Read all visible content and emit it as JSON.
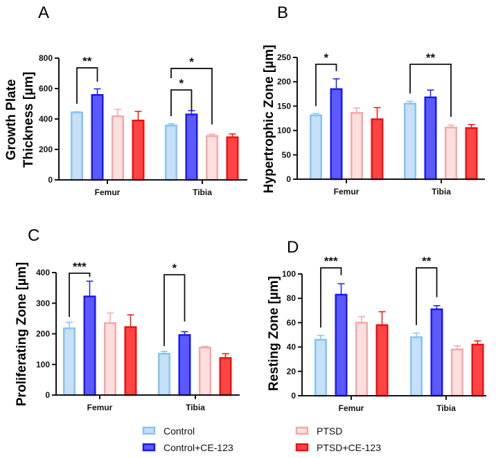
{
  "chart_data": {
    "series_names": [
      "Control",
      "Control+CE-123",
      "PTSD",
      "PTSD+CE-123"
    ],
    "series_colors": {
      "fill": [
        "#c5e0f7",
        "#5a5aff",
        "#ffdede",
        "#ff4444"
      ],
      "stroke": [
        "#86c3f5",
        "#1a1aee",
        "#f5a8a8",
        "#ee1111"
      ]
    },
    "legend_position": "bottom",
    "panels": [
      {
        "panel_label": "A",
        "type": "bar",
        "ylabel_lines": [
          "Growth Plate",
          "Thickness [µm]"
        ],
        "categories": [
          "Femur",
          "Tibia"
        ],
        "ylim": [
          0,
          800
        ],
        "yticks": [
          0,
          200,
          400,
          600,
          800
        ],
        "values": [
          [
            443,
            558,
            418,
            390
          ],
          [
            357,
            430,
            288,
            280
          ]
        ],
        "errors": [
          [
            5,
            40,
            45,
            60
          ],
          [
            12,
            25,
            12,
            22
          ]
        ],
        "significance": [
          {
            "category": 0,
            "pair": [
              0,
              1
            ],
            "label": "**"
          },
          {
            "category": 1,
            "pair": [
              0,
              1
            ],
            "label": "*"
          },
          {
            "category": 1,
            "pair": [
              0,
              2
            ],
            "label": "*"
          }
        ]
      },
      {
        "panel_label": "B",
        "type": "bar",
        "ylabel_lines": [
          "Hypertrophic Zone [µm]"
        ],
        "categories": [
          "Femur",
          "Tibia"
        ],
        "ylim": [
          0,
          250
        ],
        "yticks": [
          0,
          50,
          100,
          150,
          200,
          250
        ],
        "values": [
          [
            131,
            185,
            136,
            123
          ],
          [
            155,
            168,
            106,
            105
          ]
        ],
        "errors": [
          [
            4,
            21,
            10,
            24
          ],
          [
            5,
            15,
            5,
            7
          ]
        ],
        "significance": [
          {
            "category": 0,
            "pair": [
              0,
              1
            ],
            "label": "*"
          },
          {
            "category": 1,
            "pair": [
              0,
              2
            ],
            "label": "**"
          }
        ]
      },
      {
        "panel_label": "C",
        "type": "bar",
        "ylabel_lines": [
          "Proliferating Zone [µm]"
        ],
        "categories": [
          "Femur",
          "Tibia"
        ],
        "ylim": [
          0,
          400
        ],
        "yticks": [
          0,
          100,
          200,
          300,
          400
        ],
        "values": [
          [
            218,
            322,
            235,
            222
          ],
          [
            135,
            196,
            155,
            121
          ]
        ],
        "errors": [
          [
            20,
            50,
            33,
            40
          ],
          [
            8,
            11,
            4,
            14
          ]
        ],
        "significance": [
          {
            "category": 0,
            "pair": [
              0,
              1
            ],
            "label": "***"
          },
          {
            "category": 1,
            "pair": [
              0,
              1
            ],
            "label": "*"
          }
        ]
      },
      {
        "panel_label": "D",
        "type": "bar",
        "ylabel_lines": [
          "Resting Zone [µm]"
        ],
        "categories": [
          "Femur",
          "Tibia"
        ],
        "ylim": [
          0,
          100
        ],
        "yticks": [
          0,
          20,
          40,
          60,
          80,
          100
        ],
        "values": [
          [
            46,
            83,
            60,
            58
          ],
          [
            48,
            71,
            38,
            42
          ]
        ],
        "errors": [
          [
            3.5,
            9,
            5,
            11
          ],
          [
            3.5,
            3,
            3,
            3
          ]
        ],
        "significance": [
          {
            "category": 0,
            "pair": [
              0,
              1
            ],
            "label": "***"
          },
          {
            "category": 1,
            "pair": [
              0,
              1
            ],
            "label": "**"
          }
        ]
      }
    ]
  }
}
